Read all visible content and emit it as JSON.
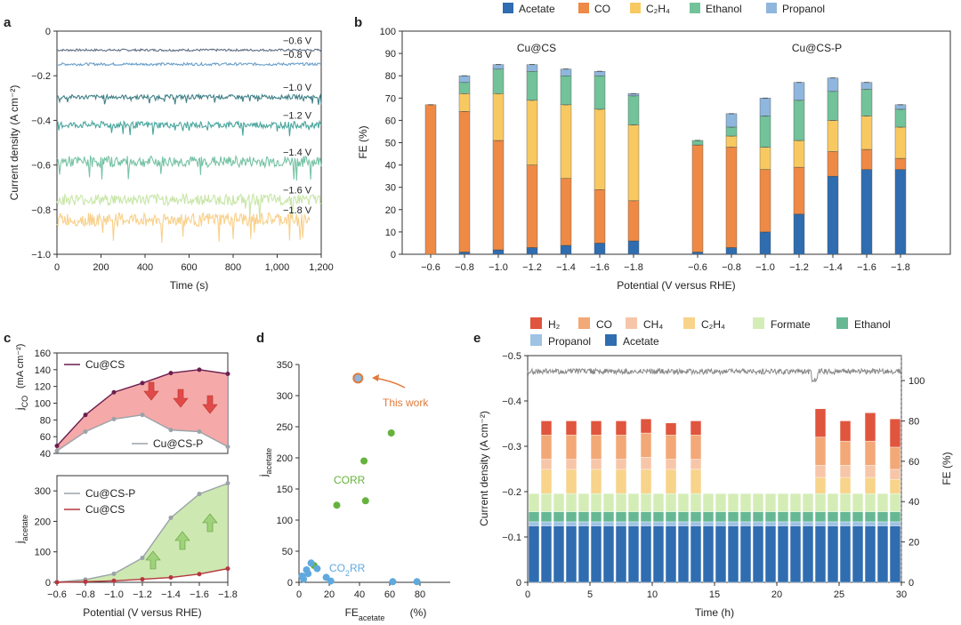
{
  "chart_data": [
    {
      "panel": "a",
      "type": "line",
      "xlabel": "Time (s)",
      "ylabel": "Current density (A cm⁻²)",
      "xlim": [
        0,
        1200
      ],
      "ylim": [
        -1.0,
        0
      ],
      "xticks": [
        "0",
        "200",
        "400",
        "600",
        "800",
        "1,000",
        "1,200"
      ],
      "yticks": [
        "0",
        "−0.2",
        "−0.4",
        "−0.6",
        "−0.8",
        "−1.0"
      ],
      "series": [
        {
          "name": "−0.6 V",
          "mean": -0.085,
          "noise": 0.005,
          "end": 1200,
          "color": "#5f6f86"
        },
        {
          "name": "−0.8 V",
          "mean": -0.148,
          "noise": 0.006,
          "end": 1200,
          "color": "#6a9fc9"
        },
        {
          "name": "−1.0 V",
          "mean": -0.295,
          "noise": 0.01,
          "end": 1200,
          "color": "#3f7f86"
        },
        {
          "name": "−1.2 V",
          "mean": -0.42,
          "noise": 0.015,
          "end": 1200,
          "color": "#4aa69e"
        },
        {
          "name": "−1.4 V",
          "mean": -0.585,
          "noise": 0.025,
          "end": 1200,
          "color": "#77c3a5"
        },
        {
          "name": "−1.6 V",
          "mean": -0.755,
          "noise": 0.025,
          "end": 1200,
          "color": "#c8e6a8"
        },
        {
          "name": "−1.8 V",
          "mean": -0.845,
          "noise": 0.03,
          "end": 1150,
          "color": "#f8d08a"
        }
      ]
    },
    {
      "panel": "b",
      "type": "bar",
      "stacked": true,
      "ylabel": "FE (%)",
      "xlabel": "Potential (V versus RHE)",
      "ylim": [
        0,
        100
      ],
      "yticks": [
        "0",
        "10",
        "20",
        "30",
        "40",
        "50",
        "60",
        "70",
        "80",
        "90",
        "100"
      ],
      "legend": [
        {
          "name": "Acetate",
          "color": "#2f6db0"
        },
        {
          "name": "CO",
          "color": "#ee8a45"
        },
        {
          "name": "C₂H₄",
          "color": "#f8c961"
        },
        {
          "name": "Ethanol",
          "color": "#72c29a"
        },
        {
          "name": "Propanol",
          "color": "#8fb6dc"
        }
      ],
      "groups": [
        {
          "name": "Cu@CS",
          "categories": [
            "−0.6",
            "−0.8",
            "−1.0",
            "−1.2",
            "−1.4",
            "−1.6",
            "−1.8"
          ],
          "series": [
            {
              "name": "Acetate",
              "values": [
                0,
                1,
                2,
                3,
                4,
                5,
                6
              ]
            },
            {
              "name": "CO",
              "values": [
                67,
                63,
                49,
                37,
                30,
                24,
                18
              ]
            },
            {
              "name": "C₂H₄",
              "values": [
                0,
                8,
                21,
                29,
                33,
                36,
                34
              ]
            },
            {
              "name": "Ethanol",
              "values": [
                0,
                5,
                11,
                13,
                13,
                15,
                13
              ]
            },
            {
              "name": "Propanol",
              "values": [
                0,
                3,
                2,
                3,
                3,
                2,
                1
              ]
            }
          ]
        },
        {
          "name": "Cu@CS-P",
          "categories": [
            "−0.6",
            "−0.8",
            "−1.0",
            "−1.2",
            "−1.4",
            "−1.6",
            "−1.8"
          ],
          "series": [
            {
              "name": "Acetate",
              "values": [
                1,
                3,
                10,
                18,
                35,
                38,
                38
              ]
            },
            {
              "name": "CO",
              "values": [
                48,
                45,
                28,
                21,
                11,
                9,
                5
              ]
            },
            {
              "name": "C₂H₄",
              "values": [
                0,
                5,
                10,
                12,
                14,
                15,
                14
              ]
            },
            {
              "name": "Ethanol",
              "values": [
                2,
                4,
                14,
                18,
                13,
                12,
                8
              ]
            },
            {
              "name": "Propanol",
              "values": [
                0,
                6,
                8,
                8,
                6,
                3,
                2
              ]
            }
          ]
        }
      ]
    },
    {
      "panel": "c-top",
      "type": "line",
      "ylabel": "j_CO (mA cm⁻²)",
      "ylim": [
        40,
        160
      ],
      "yticks": [
        "40",
        "60",
        "80",
        "100",
        "120",
        "140",
        "160"
      ],
      "x": [
        -0.6,
        -0.8,
        -1.0,
        -1.2,
        -1.4,
        -1.6,
        -1.8
      ],
      "series": [
        {
          "name": "Cu@CS",
          "values": [
            49,
            86,
            113,
            124,
            136,
            140,
            135
          ],
          "color": "#6b1f4f"
        },
        {
          "name": "Cu@CS-P",
          "values": [
            43,
            66,
            81,
            86,
            68,
            66,
            48
          ],
          "color": "#9aa3a8"
        }
      ]
    },
    {
      "panel": "c-bottom",
      "type": "line",
      "ylabel": "j_acetate (mA cm⁻²)",
      "xlabel": "Potential (V versus RHE)",
      "ylim": [
        0,
        350
      ],
      "yticks": [
        "0",
        "100",
        "200",
        "300"
      ],
      "x": [
        -0.6,
        -0.8,
        -1.0,
        -1.2,
        -1.4,
        -1.6,
        -1.8
      ],
      "xticks": [
        "−0.6",
        "−0.8",
        "−1.0",
        "−1.2",
        "−1.4",
        "−1.6",
        "−1.8"
      ],
      "series": [
        {
          "name": "Cu@CS-P",
          "values": [
            1,
            9,
            28,
            80,
            212,
            290,
            325
          ],
          "color": "#9aa3a8"
        },
        {
          "name": "Cu@CS",
          "values": [
            0,
            2,
            5,
            10,
            16,
            27,
            45
          ],
          "color": "#b5373d"
        }
      ]
    },
    {
      "panel": "d",
      "type": "scatter",
      "xlabel": "FE_acetate (%)",
      "ylabel": "j_acetate (mA cm⁻²)",
      "xlim": [
        0,
        100
      ],
      "ylim": [
        0,
        350
      ],
      "xticks": [
        "0",
        "20",
        "40",
        "60",
        "80"
      ],
      "yticks": [
        "0",
        "50",
        "100",
        "150",
        "200",
        "250",
        "300",
        "350"
      ],
      "series": [
        {
          "name": "CORR",
          "color": "#66b23f",
          "x": [
            25,
            43,
            44,
            61,
            10
          ],
          "y": [
            124,
            195,
            131,
            240,
            27
          ]
        },
        {
          "name": "CO₂RR",
          "color": "#5fa9dd",
          "x": [
            2,
            3,
            5,
            6,
            8,
            12,
            18,
            21,
            62,
            78
          ],
          "y": [
            10,
            5,
            20,
            14,
            31,
            22,
            8,
            2,
            1,
            1
          ]
        },
        {
          "name": "This work",
          "color": "#e07a3a",
          "x": [
            39
          ],
          "y": [
            328
          ]
        }
      ],
      "annotations": [
        "This work",
        "CORR",
        "CO₂RR"
      ]
    },
    {
      "panel": "e",
      "type": "bar",
      "stacked": true,
      "xlabel": "Time (h)",
      "ylabel_left": "Current density (A cm⁻²)",
      "ylabel_right": "FE (%)",
      "xlim": [
        0,
        30
      ],
      "xticks": [
        "0",
        "5",
        "10",
        "15",
        "20",
        "25",
        "30"
      ],
      "yticks_left": [
        "0",
        "−0.1",
        "−0.2",
        "−0.3",
        "−0.4",
        "−0.5"
      ],
      "yticks_right": [
        "0",
        "20",
        "40",
        "60",
        "80",
        "100"
      ],
      "legend": [
        {
          "name": "H₂",
          "color": "#e0553d"
        },
        {
          "name": "CO",
          "color": "#f3a877"
        },
        {
          "name": "CH₄",
          "color": "#f7c6a9"
        },
        {
          "name": "C₂H₄",
          "color": "#f8d38a"
        },
        {
          "name": "Formate",
          "color": "#d4edb6"
        },
        {
          "name": "Ethanol",
          "color": "#66b894"
        },
        {
          "name": "Propanol",
          "color": "#9ec3e3"
        },
        {
          "name": "Acetate",
          "color": "#2f6db0"
        }
      ],
      "base_fe": {
        "Acetate": 28,
        "Propanol": 2,
        "Ethanol": 5,
        "Formate": 9
      },
      "tall_bar_times": [
        1.5,
        3.5,
        5.5,
        7.5,
        9.5,
        11.5,
        13.5,
        23.5,
        25.5,
        27.5,
        29.5
      ],
      "tall_bar_fe": [
        {
          "C₂H₄": 12,
          "CH₄": 5,
          "CO": 12,
          "H₂": 7
        },
        {
          "C₂H₄": 12,
          "CH₄": 5,
          "CO": 12,
          "H₂": 7
        },
        {
          "C₂H₄": 12,
          "CH₄": 5,
          "CO": 12,
          "H₂": 7
        },
        {
          "C₂H₄": 12,
          "CH₄": 5,
          "CO": 12,
          "H₂": 7
        },
        {
          "C₂H₄": 12,
          "CH₄": 6,
          "CO": 12,
          "H₂": 7
        },
        {
          "C₂H₄": 12,
          "CH₄": 5,
          "CO": 12,
          "H₂": 6
        },
        {
          "C₂H₄": 12,
          "CH₄": 5,
          "CO": 12,
          "H₂": 7
        },
        {
          "C₂H₄": 8,
          "CH₄": 6,
          "CO": 14,
          "H₂": 14
        },
        {
          "C₂H₄": 8,
          "CH₄": 6,
          "CO": 12,
          "H₂": 10
        },
        {
          "C₂H₄": 8,
          "CH₄": 6,
          "CO": 12,
          "H₂": 14
        },
        {
          "C₂H₄": 7,
          "CH₄": 5,
          "CO": 11,
          "H₂": 14
        }
      ],
      "current_density_mean": -0.465,
      "fe_total_mean": 103
    }
  ]
}
